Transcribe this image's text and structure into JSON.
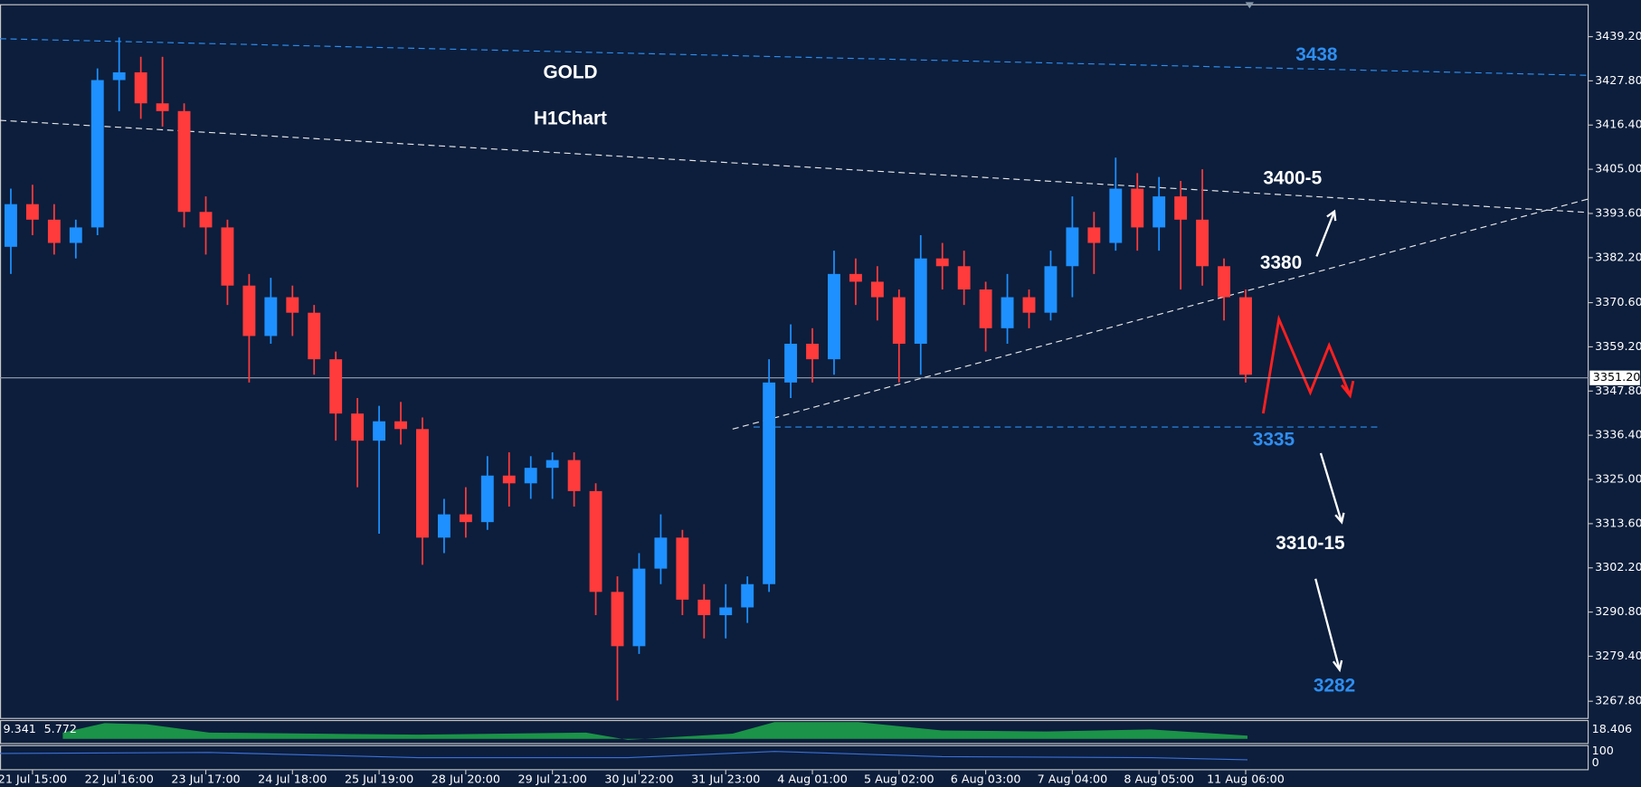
{
  "chart_data": {
    "type": "candlestick",
    "title": "GOLD",
    "subtitle": "H1Chart",
    "x": [
      3,
      9,
      15,
      21,
      27,
      33,
      39,
      45,
      51,
      57,
      63,
      69,
      75,
      81,
      87,
      93,
      99,
      105,
      111,
      117,
      123,
      129,
      135,
      141,
      147,
      153,
      159,
      165,
      171,
      177,
      183,
      189,
      195,
      201,
      207,
      213,
      219,
      225,
      231,
      237,
      243,
      249,
      255,
      261,
      267,
      273,
      279,
      285,
      291,
      297,
      303,
      309,
      315,
      321,
      327,
      333,
      339,
      345
    ],
    "open": [
      3385,
      3396,
      3392,
      3386,
      3390,
      3428,
      3430,
      3422,
      3420,
      3394,
      3390,
      3375,
      3362,
      3372,
      3368,
      3356,
      3342,
      3335,
      3340,
      3338,
      3310,
      3316,
      3314,
      3326,
      3324,
      3328,
      3330,
      3322,
      3296,
      3282,
      3302,
      3310,
      3294,
      3290,
      3292,
      3298,
      3350,
      3360,
      3356,
      3378,
      3376,
      3372,
      3360,
      3382,
      3380,
      3374,
      3364,
      3372,
      3368,
      3380,
      3390,
      3386,
      3400,
      3390,
      3398,
      3392,
      3380,
      3372
    ],
    "high": [
      3400,
      3401,
      3396,
      3392,
      3431,
      3439,
      3434,
      3434,
      3422,
      3398,
      3392,
      3378,
      3377,
      3375,
      3370,
      3358,
      3346,
      3344,
      3345,
      3341,
      3320,
      3323,
      3331,
      3332,
      3331,
      3332,
      3332,
      3324,
      3300,
      3306,
      3316,
      3312,
      3298,
      3298,
      3300,
      3356,
      3365,
      3364,
      3384,
      3382,
      3380,
      3374,
      3388,
      3386,
      3384,
      3376,
      3378,
      3374,
      3384,
      3398,
      3394,
      3408,
      3404,
      3403,
      3402,
      3405,
      3382,
      3374
    ],
    "low": [
      3378,
      3388,
      3383,
      3382,
      3388,
      3420,
      3418,
      3416,
      3390,
      3383,
      3370,
      3350,
      3360,
      3362,
      3352,
      3335,
      3323,
      3311,
      3334,
      3303,
      3306,
      3310,
      3312,
      3318,
      3320,
      3320,
      3318,
      3290,
      3268,
      3280,
      3298,
      3290,
      3284,
      3284,
      3288,
      3296,
      3346,
      3350,
      3352,
      3370,
      3366,
      3350,
      3352,
      3374,
      3370,
      3358,
      3360,
      3364,
      3366,
      3372,
      3378,
      3384,
      3384,
      3384,
      3374,
      3375,
      3366,
      3350
    ],
    "close": [
      3396,
      3392,
      3386,
      3390,
      3428,
      3430,
      3422,
      3420,
      3394,
      3390,
      3375,
      3362,
      3372,
      3368,
      3356,
      3342,
      3335,
      3340,
      3338,
      3310,
      3316,
      3314,
      3326,
      3324,
      3328,
      3330,
      3322,
      3296,
      3282,
      3302,
      3310,
      3294,
      3290,
      3292,
      3298,
      3350,
      3360,
      3356,
      3378,
      3376,
      3372,
      3360,
      3382,
      3380,
      3374,
      3364,
      3372,
      3368,
      3380,
      3390,
      3386,
      3400,
      3390,
      3398,
      3392,
      3380,
      3372,
      3352
    ],
    "up_color": "#1e90ff",
    "down_color": "#ff3b3b",
    "xlim": [
      0,
      440
    ],
    "ylim": [
      3263.5,
      3447.3
    ],
    "xticks": [
      {
        "value": 9,
        "label": "21 Jul 15:00"
      },
      {
        "value": 33,
        "label": "22 Jul 16:00"
      },
      {
        "value": 57,
        "label": "23 Jul 17:00"
      },
      {
        "value": 81,
        "label": "24 Jul 18:00"
      },
      {
        "value": 105,
        "label": "25 Jul 19:00"
      },
      {
        "value": 129,
        "label": "28 Jul 20:00"
      },
      {
        "value": 153,
        "label": "29 Jul 21:00"
      },
      {
        "value": 177,
        "label": "30 Jul 22:00"
      },
      {
        "value": 201,
        "label": "31 Jul 23:00"
      },
      {
        "value": 225,
        "label": "4 Aug 01:00"
      },
      {
        "value": 249,
        "label": "5 Aug 02:00"
      },
      {
        "value": 273,
        "label": "6 Aug 03:00"
      },
      {
        "value": 297,
        "label": "7 Aug 04:00"
      },
      {
        "value": 321,
        "label": "8 Aug 05:00"
      },
      {
        "value": 345,
        "label": "11 Aug 06:00"
      }
    ],
    "yticks": [
      {
        "value": 3439.2,
        "label": "3439.20"
      },
      {
        "value": 3427.8,
        "label": "3427.80"
      },
      {
        "value": 3416.4,
        "label": "3416.40"
      },
      {
        "value": 3405.0,
        "label": "3405.00"
      },
      {
        "value": 3393.6,
        "label": "3393.60"
      },
      {
        "value": 3382.2,
        "label": "3382.20"
      },
      {
        "value": 3370.6,
        "label": "3370.60"
      },
      {
        "value": 3359.2,
        "label": "3359.20"
      },
      {
        "value": 3347.8,
        "label": "3347.80"
      },
      {
        "value": 3336.4,
        "label": "3336.40"
      },
      {
        "value": 3325.0,
        "label": "3325.00"
      },
      {
        "value": 3313.6,
        "label": "3313.60"
      },
      {
        "value": 3302.2,
        "label": "3302.20"
      },
      {
        "value": 3290.8,
        "label": "3290.80"
      },
      {
        "value": 3279.4,
        "label": "3279.40"
      },
      {
        "value": 3267.8,
        "label": "3267.80"
      }
    ],
    "current_price": {
      "value": 3351.2,
      "label": "3351.20"
    },
    "annotations": [
      "3438",
      "3400-5",
      "3380",
      "3335",
      "3310-15",
      "3282"
    ],
    "indicator_values": [
      "9.341",
      "5.772"
    ],
    "indicator_scale": [
      "18.406",
      "100",
      "0"
    ]
  }
}
